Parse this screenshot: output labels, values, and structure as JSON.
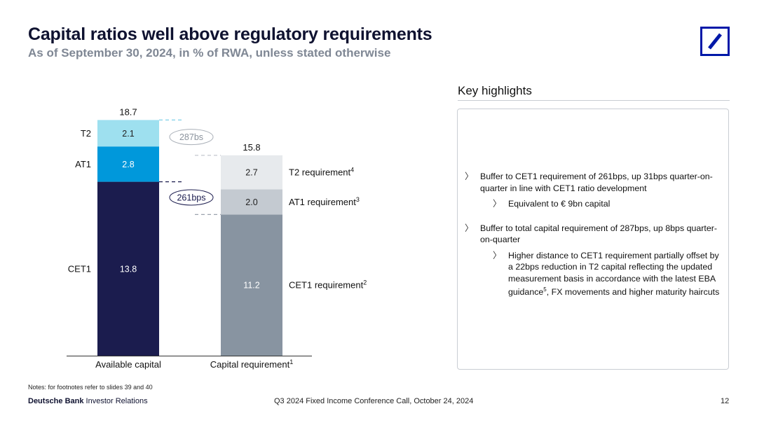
{
  "header": {
    "title": "Capital ratios well above regulatory requirements",
    "subtitle": "As of September 30, 2024, in % of RWA, unless stated otherwise"
  },
  "colors": {
    "cet1": "#1b1c4e",
    "at1": "#0098db",
    "t2": "#9ee0ef",
    "req_cet1": "#8894a1",
    "req_at1": "#c4cad1",
    "req_t2": "#e7eaed",
    "brand": "#0018a8"
  },
  "chart_data": {
    "type": "bar",
    "stacked": true,
    "categories": [
      "Available capital",
      "Capital requirement"
    ],
    "category_superscripts": [
      "",
      "1"
    ],
    "series": [
      {
        "name": "CET1",
        "values": [
          13.8,
          11.2
        ]
      },
      {
        "name": "AT1",
        "values": [
          2.8,
          2.0
        ]
      },
      {
        "name": "T2",
        "values": [
          2.1,
          2.7
        ]
      }
    ],
    "totals": [
      "18.7",
      "15.8"
    ],
    "left_labels": [
      "CET1",
      "AT1",
      "T2"
    ],
    "requirement_labels": [
      {
        "text": "CET1 requirement",
        "sup": "2"
      },
      {
        "text": "AT1 requirement",
        "sup": "3"
      },
      {
        "text": "T2 requirement",
        "sup": "4"
      }
    ],
    "annotations": [
      "287bs",
      "261bps"
    ],
    "ylim": [
      0,
      20
    ]
  },
  "highlights": {
    "title": "Key highlights",
    "items": [
      {
        "level": 1,
        "text": "Buffer to CET1 requirement of 261bps, up 31bps quarter-on-quarter in line with CET1 ratio development"
      },
      {
        "level": 2,
        "text": "Equivalent to € 9bn capital"
      },
      {
        "level": 1,
        "text": "Buffer to total capital requirement of 287bps, up 8bps quarter-on-quarter"
      },
      {
        "level": 2,
        "text": "Higher distance to CET1 requirement partially offset by a 22bps reduction in T2 capital reflecting the updated measurement basis in accordance with the latest EBA guidance",
        "sup": "5",
        "text_after": ", FX movements and higher maturity haircuts"
      }
    ],
    "marker": "〉"
  },
  "footer": {
    "notes": "Notes: for footnotes refer to slides 39 and 40",
    "brand_bold": "Deutsche Bank",
    "brand_rest": " Investor Relations",
    "event": "Q3 2024 Fixed Income Conference Call, October 24, 2024",
    "page": "12"
  }
}
